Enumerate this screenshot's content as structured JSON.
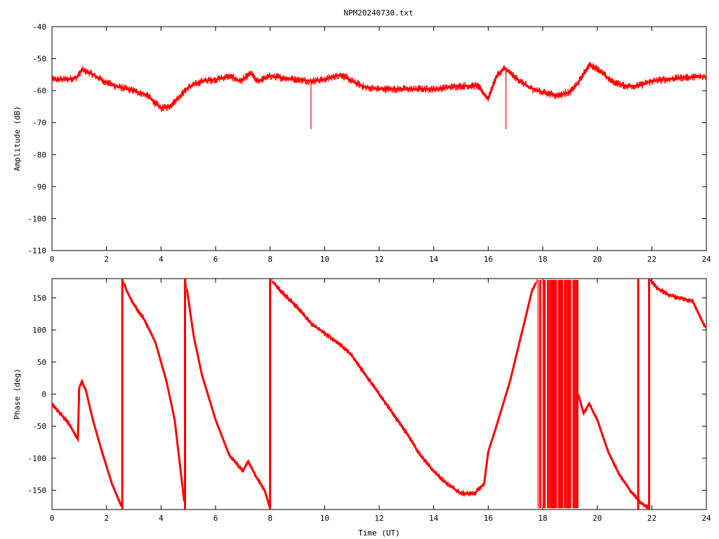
{
  "title": "NPM20240730.txt",
  "colors": {
    "series": "#ff0000",
    "axes": "#000000",
    "background": "#ffffff"
  },
  "chart_data": [
    {
      "type": "line",
      "ylabel": "Amplitude (dB)",
      "xlabel": "",
      "xlim": [
        0,
        24
      ],
      "ylim": [
        -110,
        -40
      ],
      "xticks": [
        0,
        2,
        4,
        6,
        8,
        10,
        12,
        14,
        16,
        18,
        20,
        22,
        24
      ],
      "yticks": [
        -110,
        -100,
        -90,
        -80,
        -70,
        -60,
        -50,
        -40
      ],
      "grid": false,
      "series": [
        {
          "x": [
            0,
            0.5,
            0.9,
            1.1,
            1.4,
            2.0,
            2.5,
            3.0,
            3.5,
            3.8,
            4.0,
            4.3,
            4.6,
            5.0,
            5.5,
            6.0,
            6.5,
            6.9,
            7.1,
            7.3,
            7.5,
            7.7,
            8.0,
            8.5,
            9.0,
            9.5,
            10.0,
            10.6,
            11.0,
            11.5,
            12.0,
            13.0,
            14.0,
            15.0,
            15.6,
            16.0,
            16.3,
            16.6,
            17.0,
            17.5,
            18.0,
            18.5,
            19.0,
            19.3,
            19.7,
            20.0,
            20.5,
            21.0,
            21.5,
            22.0,
            23.0,
            24.0
          ],
          "y": [
            -56.5,
            -56.5,
            -56,
            -53.5,
            -54.5,
            -57.5,
            -59,
            -60,
            -61.5,
            -64,
            -65.5,
            -65,
            -62.5,
            -59,
            -57,
            -56.5,
            -55.5,
            -57,
            -56,
            -54.5,
            -57,
            -56.5,
            -55.5,
            -56,
            -56.5,
            -57,
            -56.5,
            -55,
            -57,
            -59,
            -59.5,
            -59.5,
            -59.5,
            -58.5,
            -58.5,
            -62.5,
            -55.5,
            -53,
            -56,
            -59,
            -60.5,
            -61.5,
            -60.5,
            -57.5,
            -52,
            -53,
            -57,
            -58.5,
            -58.5,
            -57,
            -56,
            -55.5
          ]
        }
      ],
      "spikes": [
        {
          "x": 9.5,
          "y_from": -57,
          "y_to": -72
        },
        {
          "x": 16.65,
          "y_from": -53,
          "y_to": -72
        }
      ]
    },
    {
      "type": "line",
      "ylabel": "Phase (deg)",
      "xlabel": "Time (UT)",
      "xlim": [
        0,
        24
      ],
      "ylim": [
        -180,
        180
      ],
      "xticks": [
        0,
        2,
        4,
        6,
        8,
        10,
        12,
        14,
        16,
        18,
        20,
        22,
        24
      ],
      "yticks": [
        -150,
        -100,
        -50,
        0,
        50,
        100,
        150
      ],
      "grid": false,
      "series": [
        {
          "x": [
            0,
            0.3,
            0.6,
            0.95,
            1.0,
            1.1,
            1.25,
            1.5,
            1.8,
            2.2,
            2.58,
            2.6,
            2.75,
            3.0,
            3.4,
            3.8,
            4.2,
            4.5,
            4.88,
            4.9,
            5.2,
            5.5,
            6.0,
            6.5,
            7.0,
            7.2,
            7.5,
            7.8,
            8.0,
            8.05,
            8.4,
            9.0,
            9.5,
            10.0,
            10.5,
            11.0,
            11.5,
            12.0,
            12.5,
            13.0,
            13.5,
            14.0,
            14.5,
            15.0,
            15.5,
            15.85,
            16.0,
            16.3,
            16.8,
            17.2,
            17.6,
            17.8,
            19.3,
            19.5,
            19.7,
            20.0,
            20.4,
            20.8,
            21.2,
            21.6,
            21.9,
            21.95,
            22.2,
            22.6,
            23.0,
            23.5,
            24.0
          ],
          "y": [
            -15,
            -30,
            -45,
            -70,
            10,
            20,
            5,
            -40,
            -85,
            -140,
            -178,
            178,
            160,
            140,
            115,
            80,
            20,
            -40,
            -178,
            178,
            90,
            30,
            -40,
            -95,
            -120,
            -105,
            -130,
            -150,
            -178,
            178,
            160,
            135,
            110,
            95,
            80,
            60,
            30,
            0,
            -30,
            -60,
            -95,
            -120,
            -140,
            -155,
            -155,
            -140,
            -90,
            -50,
            20,
            90,
            160,
            178,
            0,
            -30,
            -15,
            -40,
            -90,
            -125,
            -150,
            -170,
            -178,
            178,
            165,
            155,
            150,
            145,
            100
          ],
          "gaps": [
            [
              2.58,
              2.6
            ],
            [
              4.88,
              4.9
            ],
            [
              8.0,
              8.05
            ],
            [
              17.8,
              19.3
            ],
            [
              21.9,
              21.95
            ]
          ]
        }
      ],
      "noise_blocks": [
        {
          "x_from": 17.75,
          "x_to": 19.3,
          "y_from": -178,
          "y_to": 178
        }
      ],
      "wraps": [
        2.58,
        4.88,
        8.0,
        21.5,
        21.9
      ]
    }
  ]
}
